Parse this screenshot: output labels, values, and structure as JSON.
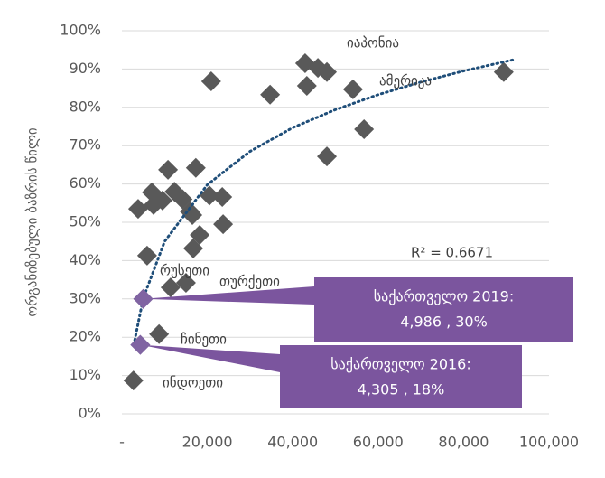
{
  "chart_data": {
    "type": "scatter",
    "y_label": "ორგანიზებული ბაზრის წილი",
    "xlim": [
      0,
      100000
    ],
    "xticks": [
      {
        "value": 0,
        "label": "-"
      },
      {
        "value": 20000,
        "label": "20,000"
      },
      {
        "value": 40000,
        "label": "40,000"
      },
      {
        "value": 60000,
        "label": "60,000"
      },
      {
        "value": 80000,
        "label": "80,000"
      },
      {
        "value": 100000,
        "label": "100,000"
      }
    ],
    "ylim": [
      0,
      100
    ],
    "yticks": [
      {
        "value": 0,
        "label": "0%"
      },
      {
        "value": 10,
        "label": "10%"
      },
      {
        "value": 20,
        "label": "20%"
      },
      {
        "value": 30,
        "label": "30%"
      },
      {
        "value": 40,
        "label": "40%"
      },
      {
        "value": 50,
        "label": "50%"
      },
      {
        "value": 60,
        "label": "60%"
      },
      {
        "value": 70,
        "label": "70%"
      },
      {
        "value": 80,
        "label": "80%"
      },
      {
        "value": 90,
        "label": "90%"
      },
      {
        "value": 100,
        "label": "100%"
      }
    ],
    "grid": true,
    "series": [
      {
        "color": "#595959",
        "x": [
          2700,
          8700,
          5900,
          3800,
          7000,
          7400,
          9500,
          10800,
          12300,
          14200,
          15900,
          16500,
          17300,
          18200,
          16700,
          11400,
          15000,
          20500,
          23500,
          23700,
          20900,
          34700,
          42900,
          43300,
          45900,
          48000,
          48000,
          54100,
          56700,
          89400
        ],
        "values": [
          8.7,
          20.8,
          41.3,
          53.5,
          57.8,
          54.5,
          55.7,
          63.7,
          58,
          56,
          52.8,
          51.9,
          64.2,
          46.7,
          43.2,
          33,
          34.2,
          57,
          56.6,
          49.5,
          86.8,
          83.3,
          91.5,
          85.6,
          90.3,
          89.2,
          67.2,
          84.7,
          74.3,
          89.2
        ]
      },
      {
        "color": "#8064a2",
        "x": [
          4986,
          4305
        ],
        "values": [
          30,
          18
        ]
      }
    ],
    "trendline": {
      "color": "#1f4e79",
      "x": [
        3000,
        5000,
        10000,
        20000,
        30000,
        40000,
        50000,
        60000,
        70000,
        80000,
        92000
      ],
      "values": [
        19.2,
        30.2,
        45,
        59.8,
        68.5,
        74.7,
        79.4,
        83.3,
        86.6,
        89.5,
        92.5
      ],
      "label": "R² = 0.6671"
    },
    "annotations": [
      "იაპონია",
      "ამერიკა",
      "რუსეთი",
      "თურქეთი",
      "ჩინეთი",
      "ინდოეთი"
    ],
    "callouts": [
      {
        "color": "#7b559e",
        "lines": [
          "საქართველო 2019:",
          "4,986 , 30%"
        ]
      },
      {
        "color": "#7b559e",
        "lines": [
          "საქართველო 2016:",
          "4,305 , 18%"
        ]
      }
    ]
  }
}
